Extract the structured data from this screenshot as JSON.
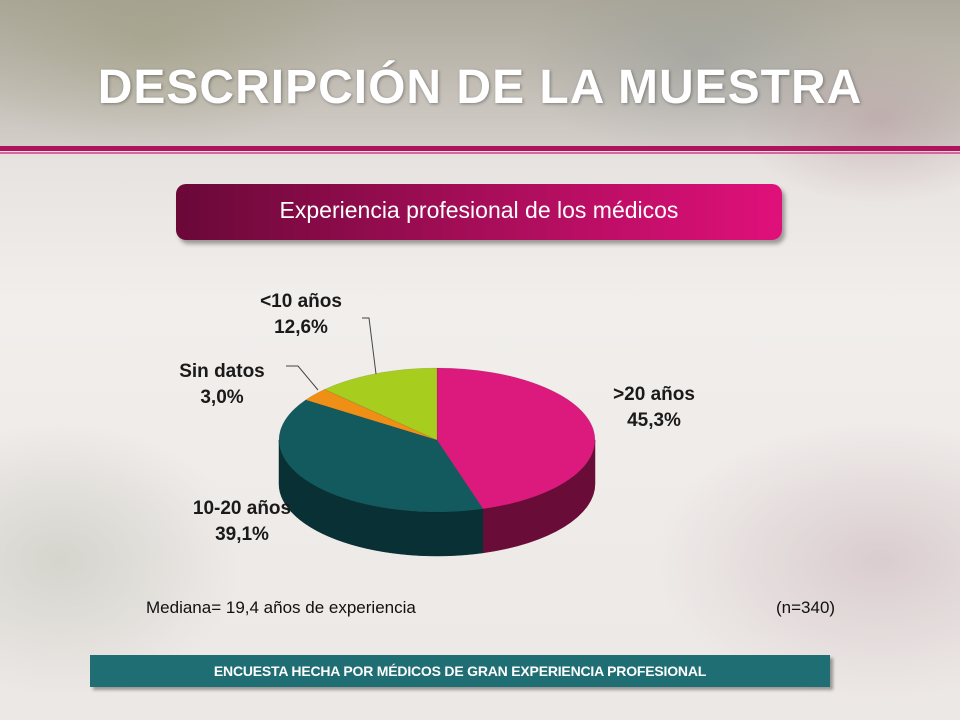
{
  "slide": {
    "title": "DESCRIPCIÓN DE LA MUESTRA",
    "banner": "Experiencia profesional de los médicos",
    "median_note": "Mediana= 19,4 años de experiencia",
    "sample_note": "(n=340)",
    "footer": "ENCUESTA HECHA POR MÉDICOS DE GRAN EXPERIENCIA PROFESIONAL"
  },
  "chart_data": {
    "type": "pie",
    "title": "",
    "categories": [
      ">20 años",
      "10-20 años",
      "Sin datos",
      "<10 años"
    ],
    "values": [
      45.3,
      39.1,
      3.0,
      12.6
    ],
    "value_labels": [
      "45,3%",
      "39,1%",
      "3,0%",
      "12,6%"
    ],
    "colors": [
      "#dc1a7e",
      "#135a5e",
      "#f08f16",
      "#a7cd1e"
    ],
    "side_colors": [
      "#6a0c38",
      "#093034",
      "#8a4f0a",
      "#5c7310"
    ]
  }
}
